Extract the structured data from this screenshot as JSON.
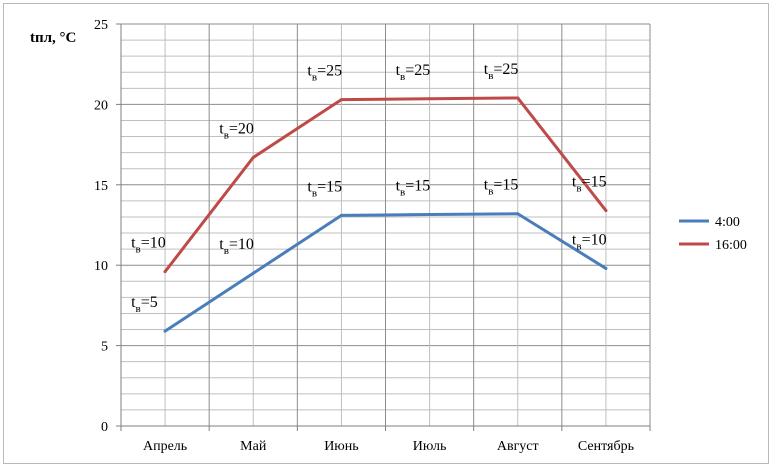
{
  "chart_data": {
    "type": "line",
    "ylabel": "tпл, °C",
    "xlabel": "",
    "ylim": [
      0,
      25
    ],
    "yticks": [
      0,
      5,
      10,
      15,
      20,
      25
    ],
    "categories": [
      "Апрель",
      "Май",
      "Июнь",
      "Июль",
      "Август",
      "Сентябрь"
    ],
    "grid": true,
    "legend_position": "right",
    "series": [
      {
        "name": "4:00",
        "color": "#4a7ebb",
        "values": [
          5.9,
          9.5,
          13.1,
          13.15,
          13.2,
          9.8
        ],
        "annotations": [
          {
            "base": "t",
            "sub": "в",
            "text": "=5"
          },
          {
            "base": "t",
            "sub": "в",
            "text": "=10"
          },
          {
            "base": "t",
            "sub": "в",
            "text": "=15"
          },
          {
            "base": "t",
            "sub": "в",
            "text": "=15"
          },
          {
            "base": "t",
            "sub": "в",
            "text": "=15"
          },
          {
            "base": "t",
            "sub": "в",
            "text": "=10"
          }
        ]
      },
      {
        "name": "16:00",
        "color": "#be4b48",
        "values": [
          9.6,
          16.7,
          20.3,
          20.35,
          20.4,
          13.4
        ],
        "annotations": [
          {
            "base": "t",
            "sub": "в",
            "text": "=10"
          },
          {
            "base": "t",
            "sub": "в",
            "text": "=20"
          },
          {
            "base": "t",
            "sub": "в",
            "text": "=25"
          },
          {
            "base": "t",
            "sub": "в",
            "text": "=25"
          },
          {
            "base": "t",
            "sub": "в",
            "text": "=25"
          },
          {
            "base": "t",
            "sub": "в",
            "text": "=15"
          }
        ]
      }
    ]
  }
}
